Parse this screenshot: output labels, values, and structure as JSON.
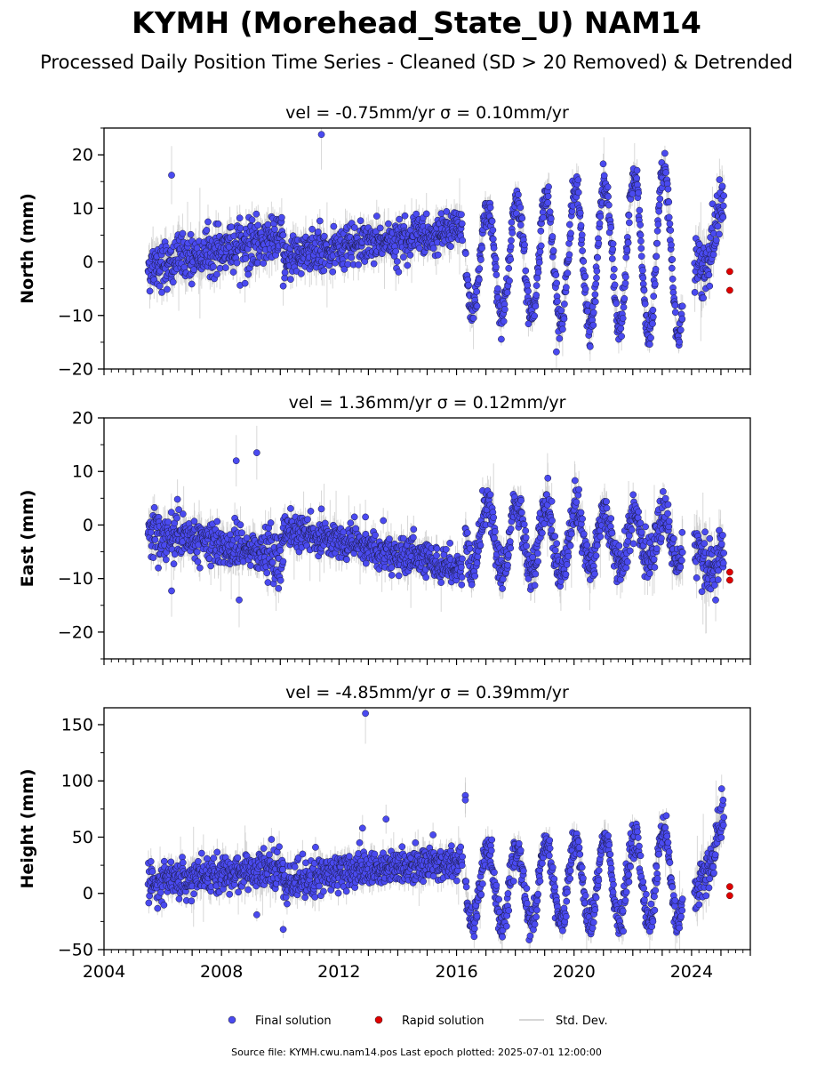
{
  "title": "KYMH (Morehead_State_U) NAM14",
  "subtitle": "Processed Daily Position Time Series - Cleaned (SD > 20 Removed) & Detrended",
  "source": "Source file: KYMH.cwu.nam14.pos  Last epoch plotted: 2025-07-01 12:00:00",
  "colors": {
    "final": "#4a4af0",
    "rapid": "#e00000",
    "stddev": "#c8c8c8"
  },
  "chart_data": [
    {
      "type": "scatter",
      "subtitle": "vel = -0.75mm/yr   σ = 0.10mm/yr",
      "vel_text": "vel = -0.75mm/yr",
      "sigma_text": "σ = 0.10mm/yr",
      "ylabel": "North (mm)",
      "xlim": [
        2004.0,
        2026.0
      ],
      "ylim": [
        -20,
        25
      ],
      "yticks": [
        -20,
        -10,
        0,
        10,
        20
      ],
      "segments": [
        {
          "x0": 2005.5,
          "x1": 2010.1,
          "mean_start": -1,
          "mean_end": 5,
          "noise": 2.2,
          "amp": 0
        },
        {
          "x0": 2010.1,
          "x1": 2011.4,
          "mean_start": 0,
          "mean_end": 3,
          "noise": 2.0,
          "amp": 0
        },
        {
          "x0": 2011.4,
          "x1": 2016.2,
          "mean_start": 2,
          "mean_end": 6,
          "noise": 1.8,
          "amp": 0
        },
        {
          "x0": 2016.3,
          "x1": 2023.7,
          "mean_start": 0,
          "mean_end": 2,
          "noise": 1.5,
          "amp": 9,
          "amp_grow": 0.8
        },
        {
          "x0": 2024.1,
          "x1": 2025.1,
          "mean_start": -4,
          "mean_end": 10,
          "noise": 2.5,
          "amp": 3
        }
      ],
      "outliers": [
        [
          2006.3,
          16.2
        ],
        [
          2011.4,
          23.8
        ],
        [
          2019.4,
          -16.8
        ],
        [
          2008.8,
          -4.0
        ],
        [
          2010.1,
          -4.5
        ]
      ],
      "rapid": [
        [
          2025.3,
          -1.8
        ],
        [
          2025.3,
          -5.3
        ]
      ]
    },
    {
      "type": "scatter",
      "subtitle": "vel = 1.36mm/yr   σ = 0.12mm/yr",
      "vel_text": "vel = 1.36mm/yr",
      "sigma_text": "σ = 0.12mm/yr",
      "ylabel": "East (mm)",
      "xlim": [
        2004.0,
        2026.0
      ],
      "ylim": [
        -25,
        20
      ],
      "yticks": [
        -20,
        -10,
        0,
        10
      ],
      "yticks_all": [
        -20,
        -10,
        0,
        10,
        20
      ],
      "segments": [
        {
          "x0": 2005.5,
          "x1": 2010.1,
          "mean_start": -1,
          "mean_end": -6,
          "noise": 2.0,
          "amp": 0
        },
        {
          "x0": 2010.1,
          "x1": 2016.2,
          "mean_start": -1,
          "mean_end": -8,
          "noise": 1.6,
          "amp": 0
        },
        {
          "x0": 2016.3,
          "x1": 2023.7,
          "mean_start": -2,
          "mean_end": -3,
          "noise": 2.0,
          "amp": 7,
          "amp_grow": -0.4
        },
        {
          "x0": 2024.1,
          "x1": 2025.1,
          "mean_start": -5,
          "mean_end": -8,
          "noise": 2.5,
          "amp": 2
        }
      ],
      "outliers": [
        [
          2006.3,
          -12.3
        ],
        [
          2008.5,
          12.0
        ],
        [
          2009.2,
          13.5
        ],
        [
          2011.4,
          3.0
        ],
        [
          2012.9,
          1.5
        ],
        [
          2008.6,
          -14.0
        ],
        [
          2006.5,
          4.8
        ]
      ],
      "rapid": [
        [
          2025.3,
          -8.8
        ],
        [
          2025.3,
          -10.3
        ]
      ]
    },
    {
      "type": "scatter",
      "subtitle": "vel = -4.85mm/yr   σ = 0.39mm/yr",
      "vel_text": "vel = -4.85mm/yr",
      "sigma_text": "σ = 0.39mm/yr",
      "ylabel": "Height (mm)",
      "xlim": [
        2004.0,
        2026.0
      ],
      "ylim": [
        -50,
        165
      ],
      "yticks": [
        -50,
        0,
        50,
        100,
        150
      ],
      "xticks": [
        2004,
        2008,
        2012,
        2016,
        2020,
        2024
      ],
      "segments": [
        {
          "x0": 2005.5,
          "x1": 2010.1,
          "mean_start": 10,
          "mean_end": 22,
          "noise": 8,
          "amp": 0
        },
        {
          "x0": 2010.1,
          "x1": 2011.4,
          "mean_start": 10,
          "mean_end": 15,
          "noise": 8,
          "amp": 0
        },
        {
          "x0": 2011.4,
          "x1": 2016.2,
          "mean_start": 18,
          "mean_end": 28,
          "noise": 7,
          "amp": 0
        },
        {
          "x0": 2016.3,
          "x1": 2023.7,
          "mean_start": 5,
          "mean_end": 15,
          "noise": 7,
          "amp": 32,
          "amp_grow": 0.3
        },
        {
          "x0": 2024.1,
          "x1": 2025.1,
          "mean_start": -5,
          "mean_end": 60,
          "noise": 10,
          "amp": 5
        }
      ],
      "outliers": [
        [
          2012.9,
          160
        ],
        [
          2013.6,
          66
        ],
        [
          2012.8,
          58
        ],
        [
          2016.3,
          87
        ],
        [
          2016.3,
          83
        ],
        [
          2010.1,
          -32
        ],
        [
          2009.2,
          -19
        ],
        [
          2015.2,
          52
        ],
        [
          2014.6,
          45
        ],
        [
          2009.7,
          48
        ],
        [
          2011.2,
          41
        ],
        [
          2012.7,
          45
        ]
      ],
      "rapid": [
        [
          2025.3,
          6
        ],
        [
          2025.3,
          -2
        ]
      ]
    }
  ],
  "legend": {
    "final_label": "Final solution",
    "rapid_label": "Rapid solution",
    "stddev_label": "Std. Dev."
  }
}
